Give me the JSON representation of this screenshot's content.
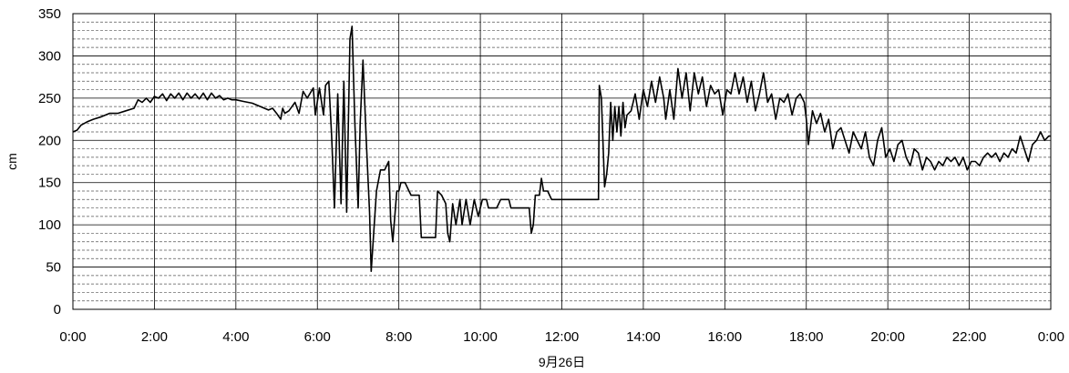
{
  "chart_data": {
    "type": "line",
    "title": "",
    "xlabel": "9月26日",
    "ylabel": "cm",
    "ylim": [
      0,
      350
    ],
    "xlim": [
      0,
      24
    ],
    "y_ticks": [
      0,
      50,
      100,
      150,
      200,
      250,
      300,
      350
    ],
    "y_tick_labels": [
      "0",
      "50",
      "100",
      "150",
      "200",
      "250",
      "300",
      "350"
    ],
    "x_ticks": [
      0,
      2,
      4,
      6,
      8,
      10,
      12,
      14,
      16,
      18,
      20,
      22,
      24
    ],
    "x_tick_labels": [
      "0:00",
      "2:00",
      "4:00",
      "6:00",
      "8:00",
      "10:00",
      "12:00",
      "14:00",
      "16:00",
      "18:00",
      "20:00",
      "22:00",
      "0:00"
    ],
    "grid": {
      "major_y": true,
      "minor_y_dashed": true,
      "major_x": true
    },
    "line_color": "#000000",
    "series": [
      {
        "values": [
          [
            0.0,
            210
          ],
          [
            0.1,
            212
          ],
          [
            0.2,
            218
          ],
          [
            0.35,
            222
          ],
          [
            0.5,
            225
          ],
          [
            0.7,
            228
          ],
          [
            0.9,
            232
          ],
          [
            1.1,
            232
          ],
          [
            1.3,
            235
          ],
          [
            1.5,
            238
          ],
          [
            1.6,
            248
          ],
          [
            1.7,
            245
          ],
          [
            1.8,
            250
          ],
          [
            1.9,
            245
          ],
          [
            2.0,
            252
          ],
          [
            2.1,
            250
          ],
          [
            2.2,
            255
          ],
          [
            2.3,
            247
          ],
          [
            2.4,
            255
          ],
          [
            2.5,
            250
          ],
          [
            2.6,
            256
          ],
          [
            2.7,
            248
          ],
          [
            2.8,
            256
          ],
          [
            2.9,
            250
          ],
          [
            3.0,
            255
          ],
          [
            3.1,
            249
          ],
          [
            3.2,
            256
          ],
          [
            3.3,
            248
          ],
          [
            3.4,
            256
          ],
          [
            3.5,
            250
          ],
          [
            3.6,
            253
          ],
          [
            3.7,
            248
          ],
          [
            3.8,
            250
          ],
          [
            3.9,
            248
          ],
          [
            4.0,
            248
          ],
          [
            4.2,
            246
          ],
          [
            4.4,
            244
          ],
          [
            4.6,
            240
          ],
          [
            4.8,
            236
          ],
          [
            4.9,
            238
          ],
          [
            5.0,
            232
          ],
          [
            5.1,
            225
          ],
          [
            5.15,
            238
          ],
          [
            5.2,
            232
          ],
          [
            5.3,
            235
          ],
          [
            5.45,
            245
          ],
          [
            5.55,
            232
          ],
          [
            5.65,
            258
          ],
          [
            5.75,
            250
          ],
          [
            5.9,
            262
          ],
          [
            5.95,
            230
          ],
          [
            6.05,
            262
          ],
          [
            6.15,
            230
          ],
          [
            6.2,
            265
          ],
          [
            6.28,
            270
          ],
          [
            6.35,
            205
          ],
          [
            6.42,
            120
          ],
          [
            6.5,
            255
          ],
          [
            6.58,
            125
          ],
          [
            6.65,
            270
          ],
          [
            6.72,
            115
          ],
          [
            6.8,
            320
          ],
          [
            6.85,
            335
          ],
          [
            6.92,
            220
          ],
          [
            7.0,
            120
          ],
          [
            7.05,
            220
          ],
          [
            7.12,
            295
          ],
          [
            7.2,
            200
          ],
          [
            7.28,
            115
          ],
          [
            7.32,
            45
          ],
          [
            7.45,
            140
          ],
          [
            7.55,
            165
          ],
          [
            7.65,
            165
          ],
          [
            7.75,
            175
          ],
          [
            7.8,
            105
          ],
          [
            7.85,
            80
          ],
          [
            7.95,
            140
          ],
          [
            8.0,
            140
          ],
          [
            8.05,
            150
          ],
          [
            8.15,
            150
          ],
          [
            8.25,
            140
          ],
          [
            8.3,
            135
          ],
          [
            8.5,
            135
          ],
          [
            8.55,
            85
          ],
          [
            8.9,
            85
          ],
          [
            8.95,
            140
          ],
          [
            9.05,
            135
          ],
          [
            9.15,
            125
          ],
          [
            9.2,
            90
          ],
          [
            9.25,
            80
          ],
          [
            9.32,
            125
          ],
          [
            9.4,
            100
          ],
          [
            9.5,
            130
          ],
          [
            9.55,
            100
          ],
          [
            9.65,
            130
          ],
          [
            9.75,
            100
          ],
          [
            9.85,
            130
          ],
          [
            9.95,
            110
          ],
          [
            10.05,
            130
          ],
          [
            10.15,
            130
          ],
          [
            10.2,
            120
          ],
          [
            10.4,
            120
          ],
          [
            10.5,
            130
          ],
          [
            10.7,
            130
          ],
          [
            10.75,
            120
          ],
          [
            11.2,
            120
          ],
          [
            11.25,
            90
          ],
          [
            11.3,
            100
          ],
          [
            11.35,
            135
          ],
          [
            11.45,
            135
          ],
          [
            11.5,
            155
          ],
          [
            11.55,
            140
          ],
          [
            11.65,
            140
          ],
          [
            11.75,
            130
          ],
          [
            12.2,
            130
          ],
          [
            12.9,
            130
          ],
          [
            12.92,
            265
          ],
          [
            12.97,
            250
          ],
          [
            13.05,
            145
          ],
          [
            13.1,
            160
          ],
          [
            13.15,
            185
          ],
          [
            13.2,
            245
          ],
          [
            13.25,
            200
          ],
          [
            13.3,
            240
          ],
          [
            13.35,
            210
          ],
          [
            13.4,
            240
          ],
          [
            13.45,
            205
          ],
          [
            13.5,
            245
          ],
          [
            13.55,
            215
          ],
          [
            13.6,
            230
          ],
          [
            13.7,
            235
          ],
          [
            13.8,
            255
          ],
          [
            13.9,
            225
          ],
          [
            14.0,
            260
          ],
          [
            14.1,
            240
          ],
          [
            14.2,
            270
          ],
          [
            14.3,
            245
          ],
          [
            14.4,
            275
          ],
          [
            14.5,
            250
          ],
          [
            14.55,
            225
          ],
          [
            14.65,
            260
          ],
          [
            14.75,
            225
          ],
          [
            14.85,
            285
          ],
          [
            14.95,
            250
          ],
          [
            15.05,
            280
          ],
          [
            15.15,
            235
          ],
          [
            15.25,
            280
          ],
          [
            15.35,
            255
          ],
          [
            15.45,
            275
          ],
          [
            15.55,
            240
          ],
          [
            15.65,
            265
          ],
          [
            15.75,
            255
          ],
          [
            15.85,
            260
          ],
          [
            15.95,
            230
          ],
          [
            16.05,
            260
          ],
          [
            16.15,
            255
          ],
          [
            16.25,
            280
          ],
          [
            16.35,
            255
          ],
          [
            16.45,
            275
          ],
          [
            16.55,
            245
          ],
          [
            16.65,
            270
          ],
          [
            16.75,
            235
          ],
          [
            16.85,
            255
          ],
          [
            16.95,
            280
          ],
          [
            17.05,
            245
          ],
          [
            17.15,
            255
          ],
          [
            17.25,
            225
          ],
          [
            17.35,
            250
          ],
          [
            17.45,
            245
          ],
          [
            17.55,
            255
          ],
          [
            17.65,
            230
          ],
          [
            17.75,
            250
          ],
          [
            17.85,
            255
          ],
          [
            17.95,
            245
          ],
          [
            18.0,
            225
          ],
          [
            18.05,
            195
          ],
          [
            18.15,
            235
          ],
          [
            18.25,
            220
          ],
          [
            18.35,
            232
          ],
          [
            18.45,
            210
          ],
          [
            18.55,
            225
          ],
          [
            18.65,
            190
          ],
          [
            18.75,
            210
          ],
          [
            18.85,
            215
          ],
          [
            18.95,
            200
          ],
          [
            19.05,
            185
          ],
          [
            19.15,
            210
          ],
          [
            19.25,
            200
          ],
          [
            19.35,
            190
          ],
          [
            19.45,
            210
          ],
          [
            19.55,
            180
          ],
          [
            19.65,
            170
          ],
          [
            19.75,
            200
          ],
          [
            19.85,
            215
          ],
          [
            19.95,
            180
          ],
          [
            20.05,
            190
          ],
          [
            20.15,
            175
          ],
          [
            20.25,
            195
          ],
          [
            20.35,
            200
          ],
          [
            20.45,
            180
          ],
          [
            20.55,
            170
          ],
          [
            20.65,
            190
          ],
          [
            20.75,
            185
          ],
          [
            20.85,
            165
          ],
          [
            20.95,
            180
          ],
          [
            21.05,
            175
          ],
          [
            21.15,
            165
          ],
          [
            21.25,
            175
          ],
          [
            21.35,
            170
          ],
          [
            21.45,
            180
          ],
          [
            21.55,
            175
          ],
          [
            21.65,
            180
          ],
          [
            21.75,
            170
          ],
          [
            21.85,
            180
          ],
          [
            21.95,
            165
          ],
          [
            22.05,
            175
          ],
          [
            22.15,
            175
          ],
          [
            22.25,
            170
          ],
          [
            22.35,
            180
          ],
          [
            22.45,
            185
          ],
          [
            22.55,
            180
          ],
          [
            22.65,
            185
          ],
          [
            22.75,
            175
          ],
          [
            22.85,
            185
          ],
          [
            22.95,
            180
          ],
          [
            23.05,
            190
          ],
          [
            23.15,
            185
          ],
          [
            23.25,
            205
          ],
          [
            23.35,
            190
          ],
          [
            23.45,
            175
          ],
          [
            23.55,
            195
          ],
          [
            23.65,
            200
          ],
          [
            23.75,
            210
          ],
          [
            23.85,
            200
          ],
          [
            23.95,
            205
          ],
          [
            24.0,
            205
          ]
        ]
      }
    ]
  }
}
